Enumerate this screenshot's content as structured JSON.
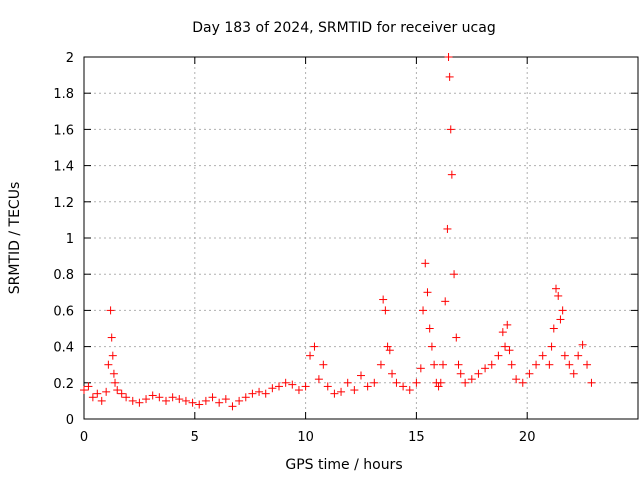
{
  "chart_data": {
    "type": "scatter",
    "title": "Day 183 of 2024, SRMTID for receiver ucag",
    "xlabel": "GPS time / hours",
    "ylabel": "SRMTID / TECUs",
    "xlim": [
      0,
      25
    ],
    "ylim": [
      0,
      2
    ],
    "xticks": [
      0,
      5,
      10,
      15,
      20
    ],
    "yticks": [
      0,
      0.2,
      0.4,
      0.6,
      0.8,
      1,
      1.2,
      1.4,
      1.6,
      1.8,
      2
    ],
    "ytick_labels": [
      "0",
      "0.2",
      "0.4",
      "0.6",
      "0.8",
      "1",
      "1.2",
      "1.4",
      "1.6",
      "1.8",
      "2"
    ],
    "grid": true,
    "marker": "+",
    "color": "#ff0000",
    "series": [
      {
        "name": "SRMTID",
        "x": [
          0.0,
          0.2,
          0.4,
          0.6,
          0.8,
          1.0,
          1.1,
          1.2,
          1.25,
          1.3,
          1.35,
          1.4,
          1.5,
          1.7,
          1.9,
          2.2,
          2.5,
          2.8,
          3.1,
          3.4,
          3.7,
          4.0,
          4.3,
          4.6,
          4.9,
          5.2,
          5.5,
          5.8,
          6.1,
          6.4,
          6.7,
          7.0,
          7.3,
          7.6,
          7.9,
          8.2,
          8.5,
          8.8,
          9.1,
          9.4,
          9.7,
          10.0,
          10.2,
          10.4,
          10.6,
          10.8,
          11.0,
          11.3,
          11.6,
          11.9,
          12.2,
          12.5,
          12.8,
          13.1,
          13.4,
          13.5,
          13.6,
          13.7,
          13.8,
          13.9,
          14.1,
          14.4,
          14.7,
          15.0,
          15.2,
          15.3,
          15.4,
          15.5,
          15.6,
          15.7,
          15.8,
          15.9,
          16.0,
          16.1,
          16.2,
          16.3,
          16.4,
          16.45,
          16.5,
          16.55,
          16.6,
          16.7,
          16.8,
          16.9,
          17.0,
          17.2,
          17.5,
          17.8,
          18.1,
          18.4,
          18.7,
          18.9,
          19.0,
          19.1,
          19.2,
          19.3,
          19.5,
          19.8,
          20.1,
          20.4,
          20.7,
          21.0,
          21.1,
          21.2,
          21.3,
          21.4,
          21.5,
          21.6,
          21.7,
          21.9,
          22.1,
          22.3,
          22.5,
          22.7,
          22.9
        ],
        "y": [
          0.16,
          0.18,
          0.12,
          0.14,
          0.1,
          0.15,
          0.3,
          0.6,
          0.45,
          0.35,
          0.25,
          0.2,
          0.16,
          0.14,
          0.12,
          0.1,
          0.09,
          0.11,
          0.13,
          0.12,
          0.1,
          0.12,
          0.11,
          0.1,
          0.09,
          0.08,
          0.1,
          0.12,
          0.09,
          0.11,
          0.07,
          0.1,
          0.12,
          0.14,
          0.15,
          0.14,
          0.17,
          0.18,
          0.2,
          0.19,
          0.16,
          0.18,
          0.35,
          0.4,
          0.22,
          0.3,
          0.18,
          0.14,
          0.15,
          0.2,
          0.16,
          0.24,
          0.18,
          0.2,
          0.3,
          0.66,
          0.6,
          0.4,
          0.38,
          0.25,
          0.2,
          0.18,
          0.16,
          0.2,
          0.28,
          0.6,
          0.86,
          0.7,
          0.5,
          0.4,
          0.3,
          0.2,
          0.18,
          0.2,
          0.3,
          0.65,
          1.05,
          2.0,
          1.89,
          1.6,
          1.35,
          0.8,
          0.45,
          0.3,
          0.25,
          0.2,
          0.22,
          0.25,
          0.28,
          0.3,
          0.35,
          0.48,
          0.4,
          0.52,
          0.38,
          0.3,
          0.22,
          0.2,
          0.25,
          0.3,
          0.35,
          0.3,
          0.4,
          0.5,
          0.72,
          0.68,
          0.55,
          0.6,
          0.35,
          0.3,
          0.25,
          0.35,
          0.41,
          0.3,
          0.2
        ]
      }
    ]
  }
}
